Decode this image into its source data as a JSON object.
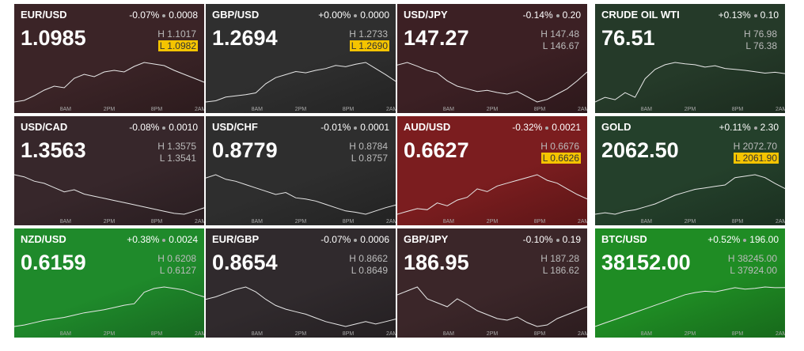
{
  "high_label": "H",
  "low_label": "L",
  "time_labels": [
    "8AM",
    "2PM",
    "8PM",
    "2AM"
  ],
  "tiles": [
    {
      "symbol": "EUR/USD",
      "change_pct": "-0.07%",
      "change": "0.0008",
      "price": "1.0985",
      "high": "1.1017",
      "low": "1.0982",
      "highlight": "low",
      "color": "#3b2427",
      "spark": [
        1.096,
        1.0962,
        1.0968,
        1.0975,
        1.098,
        1.0978,
        1.099,
        1.0995,
        1.0992,
        1.0998,
        1.1,
        1.0998,
        1.1005,
        1.101,
        1.1008,
        1.1006,
        1.1,
        1.0995,
        1.099,
        1.0985
      ]
    },
    {
      "symbol": "GBP/USD",
      "change_pct": "+0.00%",
      "change": "0.0000",
      "price": "1.2694",
      "high": "1.2733",
      "low": "1.2690",
      "highlight": "low",
      "color": "#2f2f2f",
      "spark": [
        1.266,
        1.2662,
        1.2668,
        1.267,
        1.2672,
        1.2675,
        1.269,
        1.27,
        1.2705,
        1.271,
        1.2708,
        1.2712,
        1.2715,
        1.272,
        1.2718,
        1.2722,
        1.2725,
        1.2715,
        1.2705,
        1.2694
      ]
    },
    {
      "symbol": "USD/JPY",
      "change_pct": "-0.14%",
      "change": "0.20",
      "price": "147.27",
      "high": "147.48",
      "low": "146.67",
      "highlight": null,
      "color": "#3c2024",
      "spark": [
        147.4,
        147.45,
        147.38,
        147.3,
        147.25,
        147.1,
        147.0,
        146.95,
        146.9,
        146.92,
        146.88,
        146.85,
        146.9,
        146.8,
        146.7,
        146.75,
        146.85,
        146.95,
        147.1,
        147.27
      ]
    },
    {
      "symbol": "CRUDE OIL WTI",
      "change_pct": "+0.13%",
      "change": "0.10",
      "price": "76.51",
      "high": "76.98",
      "low": "76.38",
      "highlight": null,
      "color": "#253a29",
      "spark": [
        75.9,
        76.0,
        75.95,
        76.1,
        76.0,
        76.4,
        76.6,
        76.7,
        76.75,
        76.72,
        76.7,
        76.65,
        76.68,
        76.62,
        76.6,
        76.58,
        76.55,
        76.52,
        76.54,
        76.51
      ]
    },
    {
      "symbol": "USD/CAD",
      "change_pct": "-0.08%",
      "change": "0.0010",
      "price": "1.3563",
      "high": "1.3575",
      "low": "1.3541",
      "highlight": null,
      "color": "#37272b",
      "spark": [
        1.364,
        1.3635,
        1.3625,
        1.362,
        1.361,
        1.36,
        1.3605,
        1.3595,
        1.359,
        1.3585,
        1.358,
        1.3575,
        1.357,
        1.3565,
        1.356,
        1.3555,
        1.355,
        1.3548,
        1.3555,
        1.3563
      ]
    },
    {
      "symbol": "USD/CHF",
      "change_pct": "-0.01%",
      "change": "0.0001",
      "price": "0.8779",
      "high": "0.8784",
      "low": "0.8757",
      "highlight": null,
      "color": "#2e2e2e",
      "spark": [
        0.882,
        0.8825,
        0.8818,
        0.8815,
        0.881,
        0.8805,
        0.88,
        0.8795,
        0.8798,
        0.879,
        0.8788,
        0.8785,
        0.878,
        0.8775,
        0.877,
        0.8768,
        0.8765,
        0.877,
        0.8775,
        0.8779
      ]
    },
    {
      "symbol": "AUD/USD",
      "change_pct": "-0.32%",
      "change": "0.0021",
      "price": "0.6627",
      "high": "0.6676",
      "low": "0.6626",
      "highlight": "low",
      "color": "#7b1d1f",
      "spark": [
        0.66,
        0.6605,
        0.661,
        0.6608,
        0.662,
        0.6615,
        0.6625,
        0.663,
        0.6645,
        0.664,
        0.665,
        0.6655,
        0.666,
        0.6665,
        0.667,
        0.666,
        0.6655,
        0.6645,
        0.6635,
        0.6627
      ]
    },
    {
      "symbol": "GOLD",
      "change_pct": "+0.11%",
      "change": "2.30",
      "price": "2062.50",
      "high": "2072.70",
      "low": "2061.90",
      "highlight": "low",
      "color": "#24402b",
      "spark": [
        2045,
        2046,
        2045,
        2047,
        2048,
        2050,
        2052,
        2055,
        2058,
        2060,
        2062,
        2063,
        2064,
        2065,
        2070,
        2071,
        2072,
        2070,
        2066,
        2062.5
      ]
    },
    {
      "symbol": "NZD/USD",
      "change_pct": "+0.38%",
      "change": "0.0024",
      "price": "0.6159",
      "high": "0.6208",
      "low": "0.6127",
      "highlight": null,
      "color": "#1f8a2b",
      "spark": [
        0.612,
        0.6122,
        0.6125,
        0.6128,
        0.613,
        0.6132,
        0.6135,
        0.6138,
        0.614,
        0.6142,
        0.6145,
        0.6148,
        0.615,
        0.6165,
        0.617,
        0.6172,
        0.617,
        0.6168,
        0.6163,
        0.6159
      ]
    },
    {
      "symbol": "EUR/GBP",
      "change_pct": "-0.07%",
      "change": "0.0006",
      "price": "0.8654",
      "high": "0.8662",
      "low": "0.8649",
      "highlight": null,
      "color": "#302a2d",
      "spark": [
        0.867,
        0.8672,
        0.8675,
        0.8678,
        0.868,
        0.8676,
        0.867,
        0.8665,
        0.8662,
        0.866,
        0.8658,
        0.8655,
        0.8652,
        0.865,
        0.8648,
        0.865,
        0.8652,
        0.865,
        0.8652,
        0.8654
      ]
    },
    {
      "symbol": "GBP/JPY",
      "change_pct": "-0.10%",
      "change": "0.19",
      "price": "186.95",
      "high": "187.28",
      "low": "186.62",
      "highlight": null,
      "color": "#3b2629",
      "spark": [
        187.1,
        187.15,
        187.2,
        187.05,
        187.0,
        186.95,
        187.05,
        186.98,
        186.9,
        186.85,
        186.8,
        186.78,
        186.82,
        186.75,
        186.7,
        186.72,
        186.8,
        186.85,
        186.9,
        186.95
      ]
    },
    {
      "symbol": "BTC/USD",
      "change_pct": "+0.52%",
      "change": "196.00",
      "price": "38152.00",
      "high": "38245.00",
      "low": "37924.00",
      "highlight": null,
      "color": "#1f8c24",
      "spark": [
        37600,
        37650,
        37700,
        37750,
        37800,
        37850,
        37900,
        37950,
        38000,
        38050,
        38080,
        38100,
        38090,
        38120,
        38150,
        38130,
        38140,
        38160,
        38150,
        38152
      ]
    }
  ]
}
